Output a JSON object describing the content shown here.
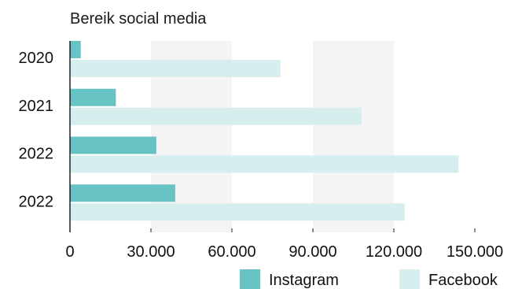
{
  "chart_data": {
    "type": "bar",
    "orientation": "horizontal",
    "title": "Bereik social media",
    "categories": [
      "2020",
      "2021",
      "2022",
      "2022"
    ],
    "series": [
      {
        "name": "Instagram",
        "color": "#67c3c4",
        "values": [
          4000,
          17000,
          32000,
          39000
        ]
      },
      {
        "name": "Facebook",
        "color": "#d7eeee",
        "values": [
          78000,
          108000,
          144000,
          124000
        ]
      }
    ],
    "xlim": [
      0,
      150000
    ],
    "xticks": [
      {
        "value": 0,
        "label": "0"
      },
      {
        "value": 30000,
        "label": "30.000"
      },
      {
        "value": 60000,
        "label": "60.000"
      },
      {
        "value": 90000,
        "label": "90.000"
      },
      {
        "value": 120000,
        "label": "120.000"
      },
      {
        "value": 150000,
        "label": "150.000"
      }
    ],
    "shaded_bands": [
      [
        30000,
        60000
      ],
      [
        90000,
        120000
      ]
    ],
    "band_color": "#f4f4f4",
    "legend_position": "bottom-right"
  }
}
